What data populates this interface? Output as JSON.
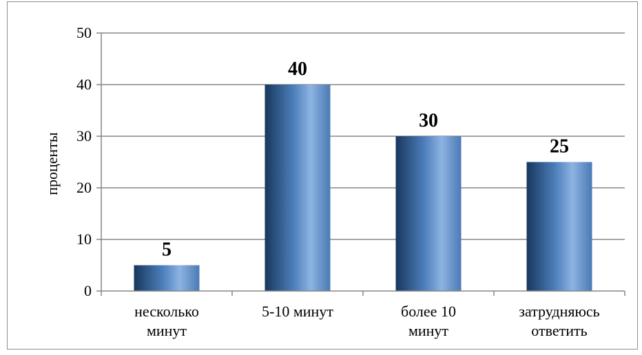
{
  "chart_data": {
    "type": "bar",
    "categories": [
      [
        "несколько",
        "минут"
      ],
      [
        "5-10 минут"
      ],
      [
        "более 10",
        "минут"
      ],
      [
        "затрудняюсь",
        "ответить"
      ]
    ],
    "values": [
      5,
      40,
      30,
      25
    ],
    "ylabel": "проценты",
    "ylim": [
      0,
      50
    ],
    "yticks": [
      0,
      10,
      20,
      30,
      40,
      50
    ],
    "grid": true,
    "data_labels": true,
    "bar_color": "#4f81bd"
  }
}
